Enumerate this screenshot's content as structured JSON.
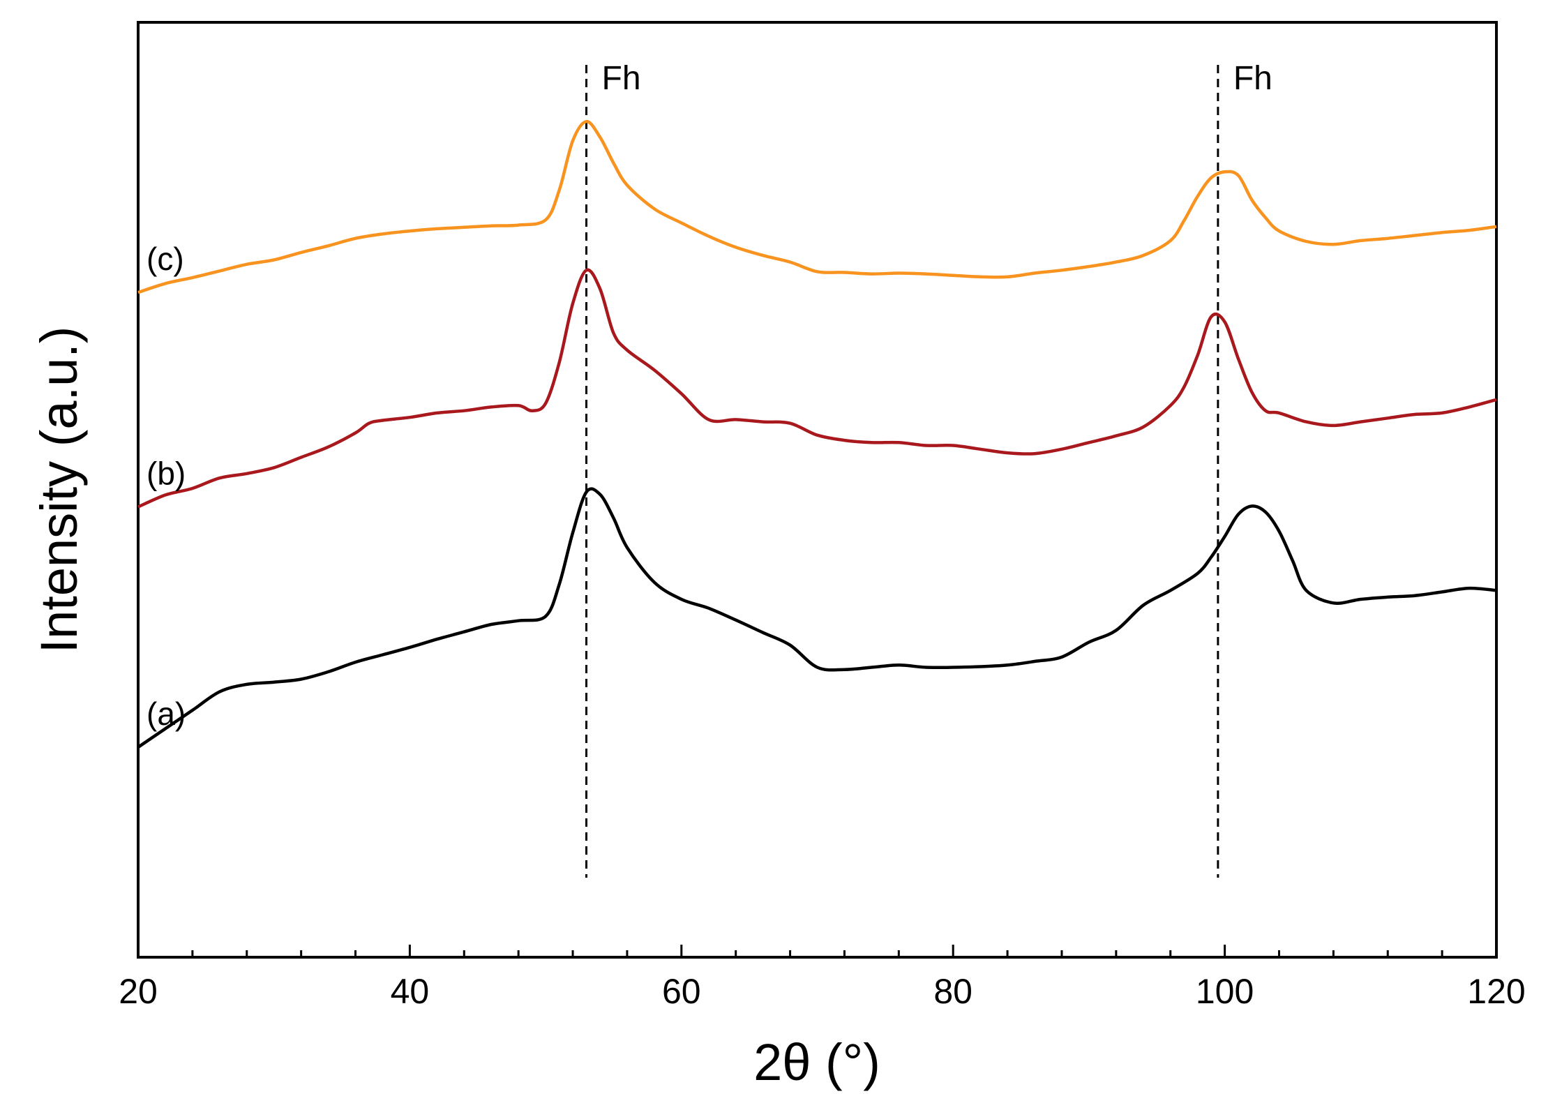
{
  "chart_data": {
    "type": "line",
    "title": "",
    "xlabel": "2θ (°)",
    "ylabel": "Intensity (a.u.)",
    "xlim": [
      20,
      120
    ],
    "ylim": [
      0,
      100
    ],
    "xticks": [
      20,
      40,
      60,
      80,
      100,
      120
    ],
    "xtick_labels": [
      "20",
      "40",
      "60",
      "80",
      "100",
      "120"
    ],
    "minor_xtick_step": 4,
    "yticks_shown": false,
    "grid": false,
    "annotations": [
      {
        "x": 53,
        "label": "Fh",
        "style": "dashed-vertical"
      },
      {
        "x": 99.5,
        "label": "Fh",
        "style": "dashed-vertical"
      }
    ],
    "series": [
      {
        "name": "(a)",
        "label": "(a)",
        "color": "#000000",
        "x": [
          20,
          22,
          24,
          26,
          28,
          30,
          32,
          34,
          36,
          38,
          40,
          42,
          44,
          46,
          48,
          50,
          51,
          52,
          53,
          54,
          55,
          56,
          58,
          60,
          62,
          64,
          66,
          68,
          70,
          72,
          74,
          76,
          78,
          80,
          82,
          84,
          86,
          88,
          90,
          92,
          94,
          96,
          98,
          99,
          100,
          101,
          102,
          103,
          104,
          105,
          106,
          108,
          110,
          112,
          114,
          116,
          118,
          120
        ],
        "y": [
          15,
          17.5,
          20,
          22.5,
          23.5,
          23.8,
          24.2,
          25.2,
          26.5,
          27.5,
          28.5,
          29.6,
          30.6,
          31.6,
          32.1,
          32.7,
          37,
          44,
          49.5,
          49.2,
          46,
          42,
          37.3,
          35,
          33.8,
          32.2,
          30.5,
          28.8,
          25.8,
          25.5,
          25.8,
          26.1,
          25.8,
          25.8,
          25.9,
          26.1,
          26.6,
          27.2,
          29.2,
          30.8,
          34.2,
          36.2,
          38.5,
          40.7,
          43.5,
          46.5,
          47.6,
          46.8,
          44.2,
          40.2,
          36.2,
          34.5,
          35,
          35.3,
          35.5,
          36,
          36.5,
          36.2
        ]
      },
      {
        "name": "(b)",
        "label": "(b)",
        "color": "#a8181c",
        "x": [
          20,
          22,
          24,
          26,
          28,
          30,
          32,
          34,
          36,
          37,
          38,
          40,
          42,
          44,
          46,
          48,
          49,
          50,
          51,
          52,
          53,
          54,
          55,
          56,
          58,
          60,
          62,
          64,
          66,
          68,
          70,
          72,
          74,
          76,
          78,
          80,
          82,
          84,
          86,
          88,
          90,
          92,
          94,
          96,
          97,
          98,
          99,
          100,
          101,
          102,
          103,
          104,
          106,
          108,
          110,
          112,
          114,
          116,
          118,
          120
        ],
        "y": [
          47.5,
          49.1,
          50,
          51.4,
          52,
          52.8,
          54.2,
          55.6,
          57.5,
          58.8,
          59.2,
          59.6,
          60.2,
          60.5,
          61,
          61.2,
          60.5,
          61.5,
          67,
          75,
          79.5,
          77,
          71,
          68.7,
          66,
          62.8,
          59.3,
          59.3,
          59,
          58.8,
          57.2,
          56.5,
          56.2,
          56.2,
          55.8,
          55.8,
          55.3,
          54.8,
          54.7,
          55.3,
          56.2,
          57.1,
          58.3,
          61.2,
          63.7,
          68,
          73.2,
          72.5,
          67.5,
          63,
          60.5,
          60.2,
          59,
          58.5,
          59,
          59.5,
          60,
          60.2,
          61,
          62
        ]
      },
      {
        "name": "(c)",
        "label": "(c)",
        "color": "#f7931e",
        "x": [
          20,
          22,
          24,
          26,
          28,
          30,
          32,
          34,
          36,
          38,
          40,
          42,
          44,
          46,
          48,
          50,
          51,
          52,
          53,
          54,
          55,
          56,
          58,
          60,
          62,
          64,
          66,
          68,
          70,
          72,
          74,
          76,
          78,
          80,
          82,
          84,
          86,
          88,
          90,
          92,
          94,
          96,
          97,
          98,
          99,
          100,
          101,
          102,
          103,
          104,
          106,
          108,
          110,
          112,
          114,
          116,
          118,
          120
        ],
        "y": [
          76.5,
          77.7,
          78.5,
          79.4,
          80.3,
          80.9,
          81.9,
          82.8,
          83.8,
          84.4,
          84.8,
          85.1,
          85.3,
          85.5,
          85.6,
          86.3,
          90.3,
          97,
          99.6,
          97.5,
          94,
          91,
          87.8,
          85.9,
          84.1,
          82.6,
          81.5,
          80.6,
          79.3,
          79.2,
          79,
          79.1,
          79,
          78.8,
          78.6,
          78.6,
          79.1,
          79.5,
          80,
          80.6,
          81.5,
          83.5,
          86.2,
          89.5,
          92,
          92.8,
          92.3,
          89,
          86.6,
          84.8,
          83.4,
          83,
          83.5,
          83.8,
          84.2,
          84.6,
          84.9,
          85.4
        ]
      }
    ]
  }
}
